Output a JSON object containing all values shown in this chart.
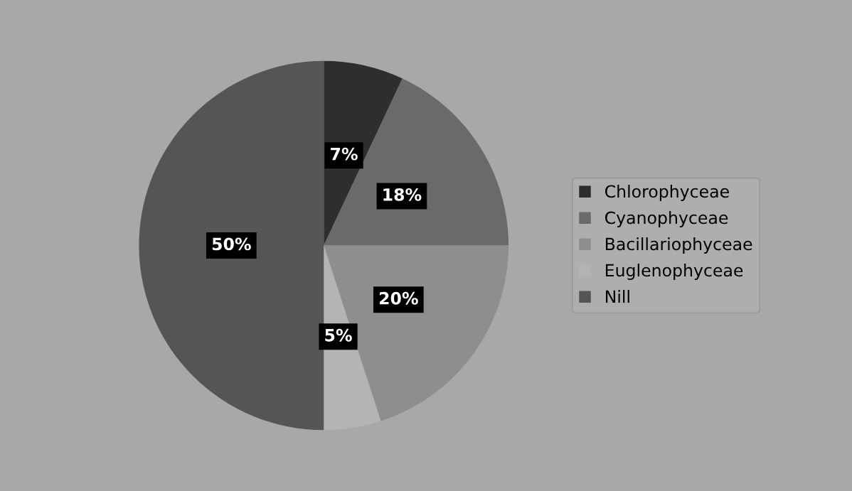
{
  "chart_data": {
    "type": "pie",
    "categories": [
      "Chlorophyceae",
      "Cyanophyceae",
      "Bacillariophyceae",
      "Euglenophyceae",
      "Nill"
    ],
    "values": [
      7,
      18,
      20,
      5,
      50
    ],
    "value_labels": [
      "7%",
      "18%",
      "20%",
      "5%",
      "50%"
    ],
    "colors": [
      "#2e2e2e",
      "#6a6a6a",
      "#8e8e8e",
      "#b4b4b4",
      "#555555"
    ],
    "legend": "right"
  }
}
